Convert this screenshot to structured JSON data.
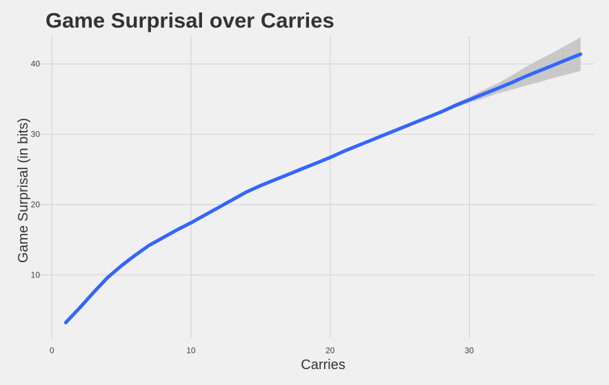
{
  "colors": {
    "background": "#f0f0f0",
    "grid": "#d0d0d0",
    "line": "#3366ff",
    "ribbon": "#c8c8c8",
    "text": "#333333"
  },
  "chart_data": {
    "type": "line",
    "title": "Game Surprisal over Carries",
    "xlabel": "Carries",
    "ylabel": "Game Surprisal (in bits)",
    "xlim": [
      -1,
      39
    ],
    "ylim": [
      1,
      44
    ],
    "x_ticks": [
      0,
      10,
      20,
      30
    ],
    "y_ticks": [
      10,
      20,
      30,
      40
    ],
    "grid": true,
    "series": [
      {
        "x": [
          1,
          2,
          3,
          4,
          5,
          6,
          7,
          8,
          9,
          10,
          11,
          12,
          13,
          14,
          15,
          16,
          17,
          18,
          19,
          20,
          21,
          22,
          23,
          24,
          25,
          26,
          27,
          28,
          29,
          30,
          31,
          32,
          33,
          34,
          35,
          36,
          37,
          38
        ],
        "y": [
          3.2,
          5.3,
          7.5,
          9.6,
          11.3,
          12.8,
          14.2,
          15.3,
          16.4,
          17.4,
          18.5,
          19.6,
          20.7,
          21.8,
          22.7,
          23.5,
          24.3,
          25.1,
          25.9,
          26.7,
          27.6,
          28.4,
          29.2,
          30.0,
          30.8,
          31.6,
          32.4,
          33.2,
          34.1,
          34.9,
          35.7,
          36.5,
          37.3,
          38.2,
          39.0,
          39.8,
          40.6,
          41.4
        ],
        "lower": [
          3.2,
          5.3,
          7.5,
          9.6,
          11.3,
          12.8,
          14.2,
          15.3,
          16.4,
          17.4,
          18.5,
          19.6,
          20.7,
          21.8,
          22.7,
          23.5,
          24.3,
          25.1,
          25.9,
          26.7,
          27.6,
          28.4,
          29.2,
          30.0,
          30.8,
          31.6,
          32.3,
          33.0,
          33.8,
          34.5,
          35.1,
          35.8,
          36.3,
          36.9,
          37.4,
          38.0,
          38.5,
          39.0
        ],
        "upper": [
          3.2,
          5.3,
          7.5,
          9.6,
          11.3,
          12.8,
          14.2,
          15.3,
          16.4,
          17.4,
          18.5,
          19.6,
          20.7,
          21.8,
          22.7,
          23.5,
          24.3,
          25.1,
          25.9,
          26.7,
          27.6,
          28.4,
          29.2,
          30.0,
          30.8,
          31.6,
          32.5,
          33.4,
          34.4,
          35.3,
          36.3,
          37.2,
          38.3,
          39.5,
          40.6,
          41.6,
          42.7,
          43.8
        ]
      }
    ]
  }
}
